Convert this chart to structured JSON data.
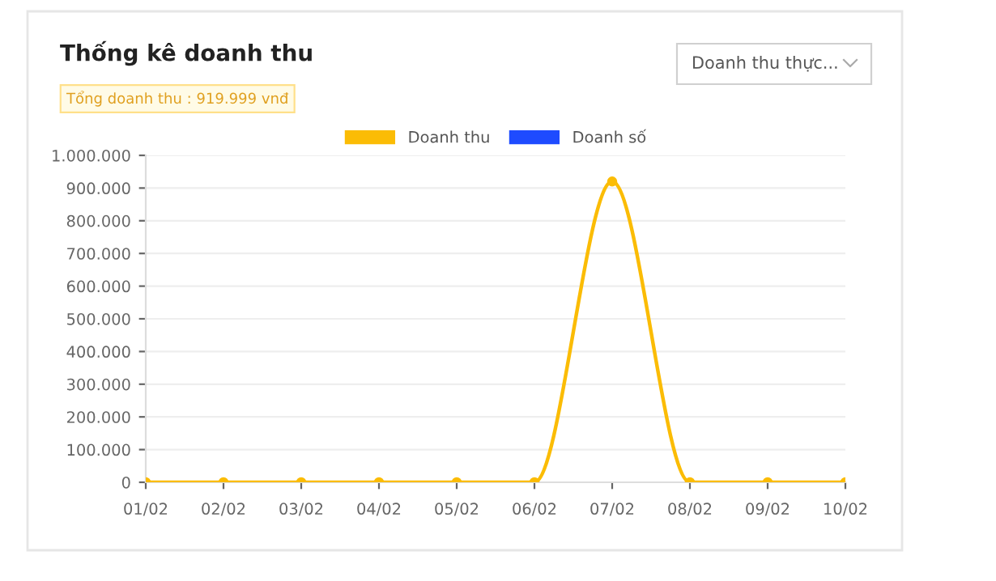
{
  "chart_data": {
    "type": "line",
    "title": "Thống kê doanh thu",
    "annotations": [
      "Tổng doanh thu : 919.999 vnđ",
      "Doanh thu thực..."
    ],
    "categories": [
      "01/02",
      "02/02",
      "03/02",
      "04/02",
      "05/02",
      "06/02",
      "07/02",
      "08/02",
      "09/02",
      "10/02"
    ],
    "series": [
      {
        "name": "Doanh thu",
        "color": "#fbbc05",
        "values": [
          0,
          0,
          0,
          0,
          0,
          0,
          919999,
          0,
          0,
          0
        ]
      },
      {
        "name": "Doanh số",
        "color": "#1e4bff",
        "values": [
          null,
          null,
          null,
          null,
          null,
          null,
          null,
          null,
          null,
          null
        ]
      }
    ],
    "ylim": [
      0,
      1000000
    ],
    "yticks": [
      0,
      {
        "value": 100000,
        "label": "100.000"
      },
      {
        "value": 200000,
        "label": "200.000"
      },
      {
        "value": 300000,
        "label": "300.000"
      },
      {
        "value": 400000,
        "label": "400.000"
      },
      {
        "value": 500000,
        "label": "500.000"
      },
      {
        "value": 600000,
        "label": "600.000"
      },
      {
        "value": 700000,
        "label": "700.000"
      },
      {
        "value": 800000,
        "label": "800.000"
      },
      {
        "value": 900000,
        "label": "900.000"
      },
      {
        "value": 1000000,
        "label": "1.000.000"
      }
    ],
    "grid": "y",
    "legend": "top",
    "marker": "circle",
    "line_style": "solid"
  }
}
